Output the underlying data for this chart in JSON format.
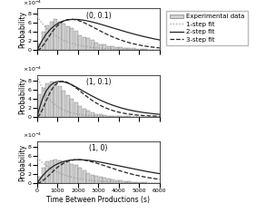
{
  "titles": [
    "(0, 0.1)",
    "(1, 0.1)",
    "(1, 0)"
  ],
  "xlabel": "Time Between Productions (s)",
  "ylabel": "Probability",
  "xlim": [
    0,
    6000
  ],
  "ylim": 0.00092,
  "bin_edges": [
    0,
    200,
    400,
    600,
    800,
    1000,
    1200,
    1400,
    1600,
    1800,
    2000,
    2200,
    2400,
    2600,
    2800,
    3000,
    3200,
    3400,
    3600,
    3800,
    4000,
    4200,
    4400,
    4600,
    4800,
    5000,
    5200,
    5400,
    5600,
    5800,
    6000
  ],
  "hist_data": [
    [
      0.00015,
      0.0004,
      0.00055,
      0.00063,
      0.00068,
      0.00063,
      0.00058,
      0.00053,
      0.00048,
      0.00042,
      0.00033,
      0.00029,
      0.00026,
      0.00022,
      0.00016,
      0.00013,
      0.00012,
      9.5e-05,
      8.5e-05,
      7.5e-05,
      6e-05,
      5.2e-05,
      4.5e-05,
      3.8e-05,
      3.2e-05,
      2.5e-05,
      1.8e-05,
      1.2e-05,
      1e-05,
      6e-06
    ],
    [
      0.0005,
      0.00063,
      0.00073,
      0.00078,
      0.00075,
      0.00068,
      0.00057,
      0.00047,
      0.00039,
      0.00031,
      0.00024,
      0.00018,
      0.00013,
      0.0001,
      6.2e-05,
      4.8e-05,
      3.5e-05,
      2e-05,
      1.8e-05,
      1.2e-05,
      8e-06,
      6e-06,
      5e-06,
      3e-06,
      2e-06,
      1.5e-06,
      1e-06,
      8e-07,
      4e-07,
      2e-07
    ],
    [
      0.00015,
      0.00035,
      0.00048,
      0.0005,
      0.00052,
      0.0005,
      0.00048,
      0.00046,
      0.00043,
      0.0004,
      0.00034,
      0.00028,
      0.00022,
      0.00018,
      0.00016,
      0.00014,
      0.00012,
      0.0001,
      8.5e-05,
      7e-05,
      6e-05,
      4.8e-05,
      4e-05,
      3.2e-05,
      2.5e-05,
      1.8e-05,
      1.3e-05,
      1e-05,
      7e-06,
      5e-06
    ]
  ],
  "fit_params": [
    {
      "lam1": 0.00095,
      "lam2": 0.00055,
      "lam3": 0.0012
    },
    {
      "lam1": 0.0014,
      "lam2": 0.0009,
      "lam3": 0.0016
    },
    {
      "lam1": 0.00085,
      "lam2": 0.0005,
      "lam3": 0.001
    }
  ],
  "bar_color": "#d0d0d0",
  "bar_edgecolor": "#666666",
  "line1_color": "#999999",
  "line2_color": "#222222",
  "line3_color": "#222222",
  "legend_fontsize": 5.0,
  "tick_fontsize": 4.5,
  "label_fontsize": 5.5,
  "title_fontsize": 5.5
}
